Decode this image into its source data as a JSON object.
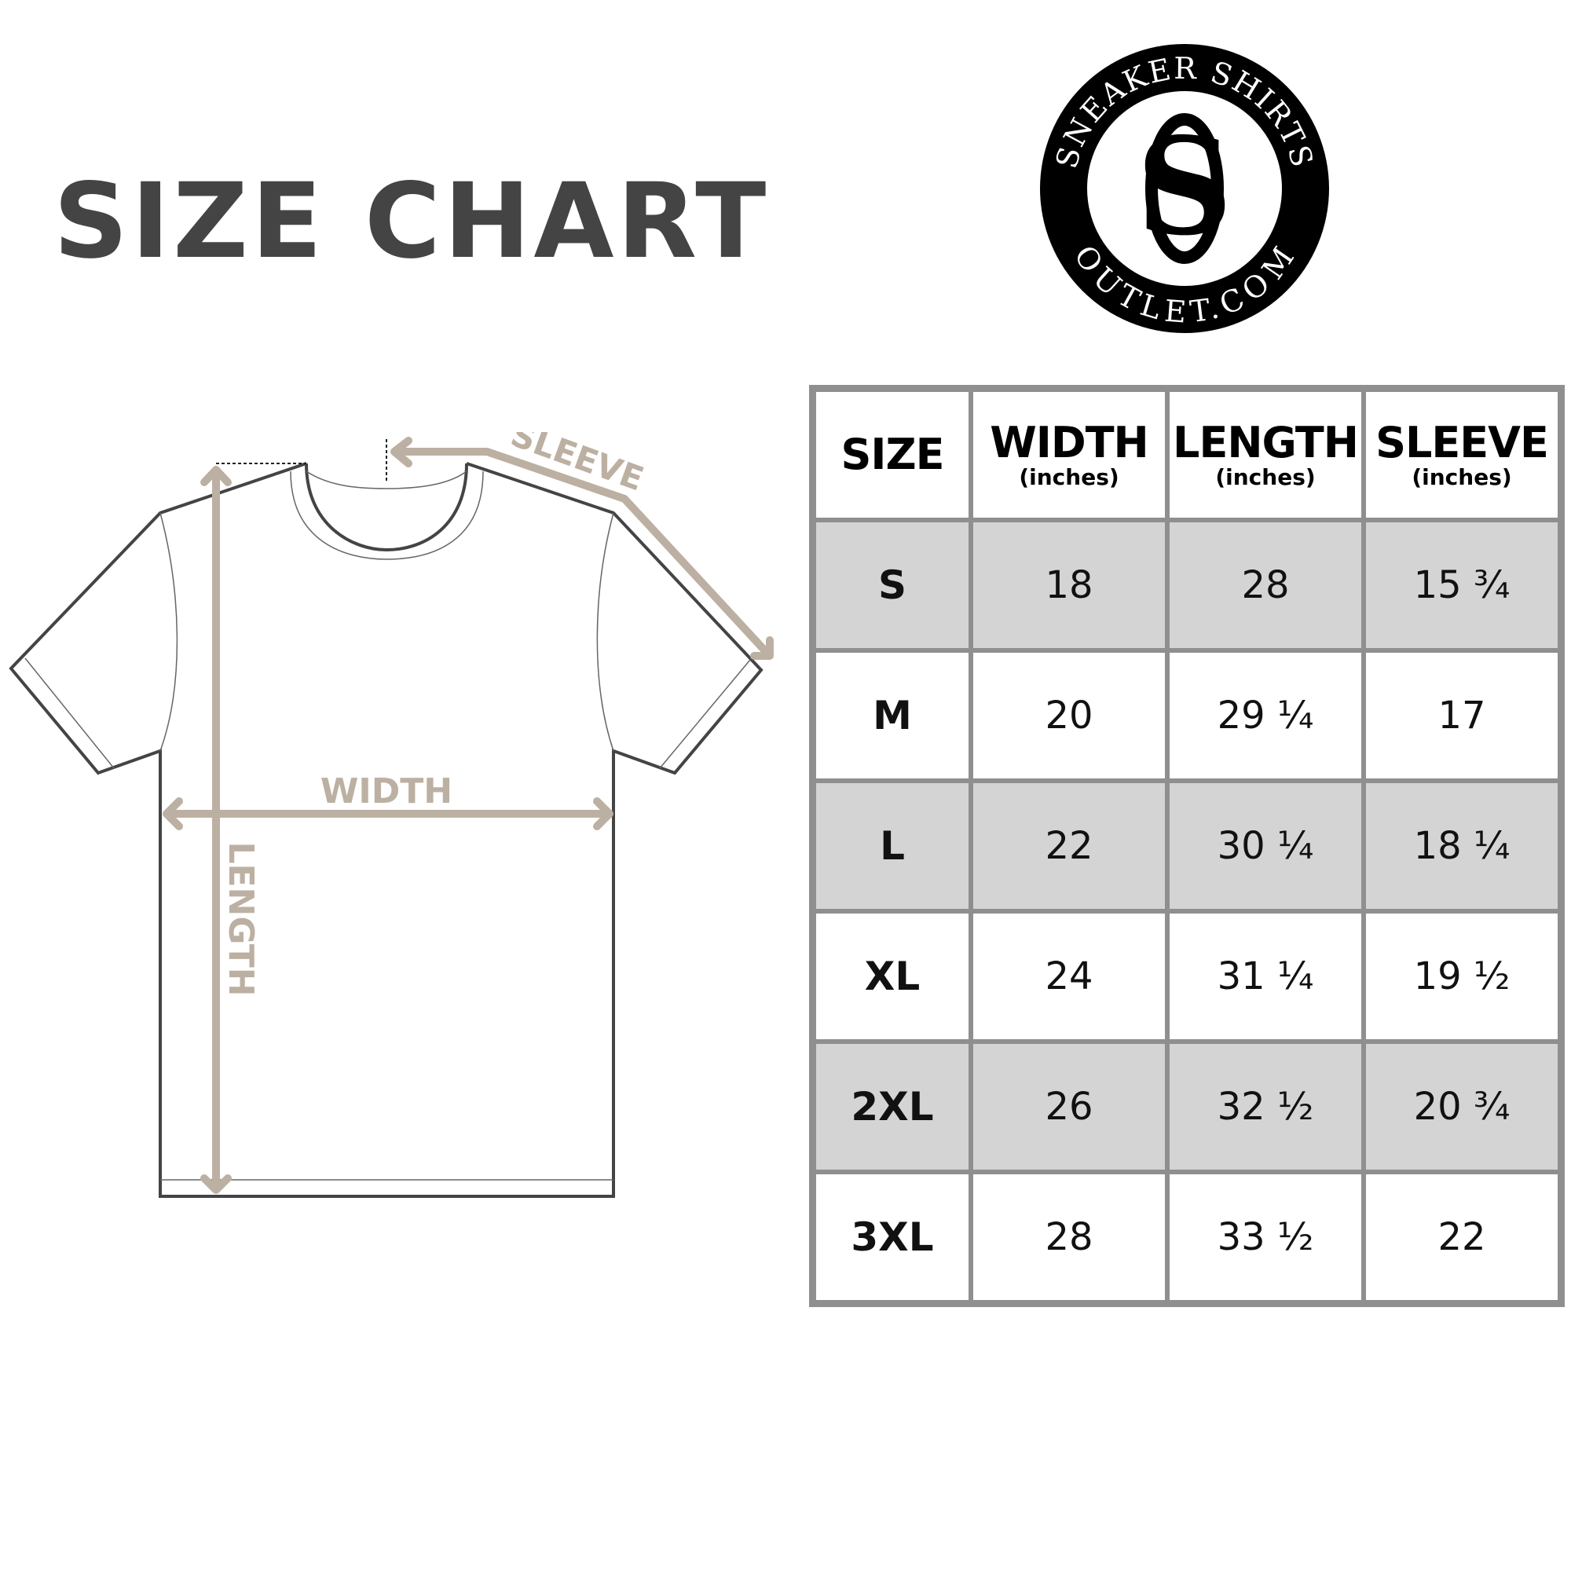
{
  "title": "SIZE CHART",
  "logo": {
    "text_top": "SNEAKER SHIRTS",
    "text_bottom": "OUTLET.COM",
    "monogram": "SO"
  },
  "diagram": {
    "sleeve_label": "SLEEVE",
    "width_label": "WIDTH",
    "length_label": "LENGTH",
    "accent_color": "#bcb0a2"
  },
  "table": {
    "headers": [
      {
        "main": "SIZE",
        "sub": ""
      },
      {
        "main": "WIDTH",
        "sub": "(inches)"
      },
      {
        "main": "LENGTH",
        "sub": "(inches)"
      },
      {
        "main": "SLEEVE",
        "sub": "(inches)"
      }
    ],
    "rows": [
      {
        "size": "S",
        "width": "18",
        "length": "28",
        "sleeve": "15 ¾"
      },
      {
        "size": "M",
        "width": "20",
        "length": "29 ¼",
        "sleeve": "17"
      },
      {
        "size": "L",
        "width": "22",
        "length": "30 ¼",
        "sleeve": "18 ¼"
      },
      {
        "size": "XL",
        "width": "24",
        "length": "31 ¼",
        "sleeve": "19 ½"
      },
      {
        "size": "2XL",
        "width": "26",
        "length": "32 ½",
        "sleeve": "20 ¾"
      },
      {
        "size": "3XL",
        "width": "28",
        "length": "33 ½",
        "sleeve": "22"
      }
    ],
    "shade_color": "#d4d4d4",
    "border_color": "#8f8f8f"
  }
}
